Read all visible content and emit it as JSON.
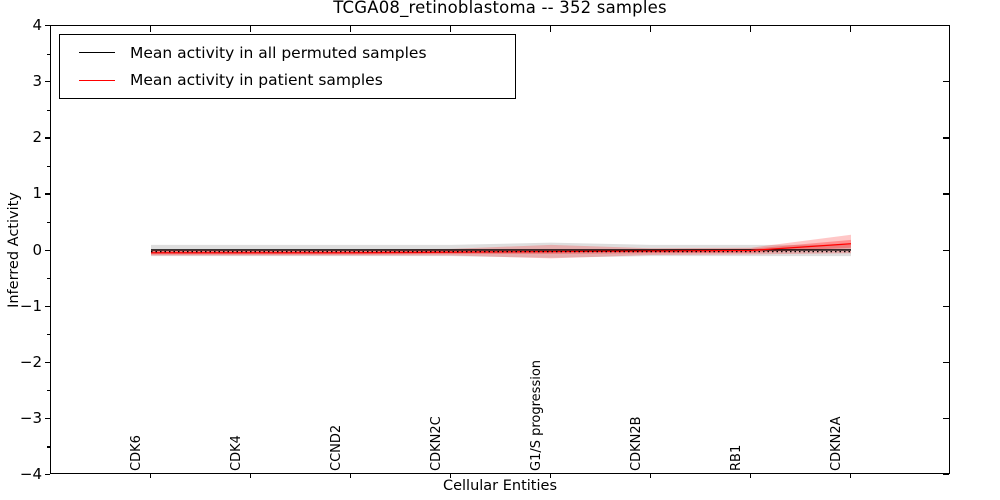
{
  "title": "TCGA08_retinoblastoma -- 352 samples",
  "axes": {
    "xlabel": "Cellular Entities",
    "ylabel": "Inferred Activity",
    "ylim": [
      -4,
      4
    ],
    "xlim": [
      0,
      9
    ],
    "ytick_major_values": [
      4,
      3,
      2,
      1,
      0,
      -1,
      -2,
      -3,
      -4
    ],
    "ytick_labels": [
      "4",
      "3",
      "2",
      "1",
      "0",
      "−1",
      "−2",
      "−3",
      "−4"
    ],
    "ytick_minor_step": 0.5
  },
  "legend": {
    "entries": [
      {
        "label": "Mean activity in all permuted samples",
        "color": "#000000"
      },
      {
        "label": "Mean activity in patient samples",
        "color": "#ff0000"
      }
    ]
  },
  "chart_data": {
    "type": "line",
    "title": "TCGA08_retinoblastoma -- 352 samples",
    "xlabel": "Cellular Entities",
    "ylabel": "Inferred Activity",
    "ylim": [
      -4,
      4
    ],
    "xlim": [
      0,
      9
    ],
    "grid": false,
    "legend_position": "upper left",
    "categories": [
      "CDK6",
      "CDK4",
      "CCND2",
      "CDKN2C",
      "G1/S progression",
      "CDKN2B",
      "RB1",
      "CDKN2A"
    ],
    "x": [
      1,
      2,
      3,
      4,
      5,
      6,
      7,
      8
    ],
    "series": [
      {
        "name": "Mean activity in all permuted samples",
        "color": "#000000",
        "style": "solid",
        "values": [
          0.01,
          0.01,
          0.01,
          0.01,
          0.01,
          0.01,
          0.01,
          0.01
        ]
      },
      {
        "name": "Mean activity in patient samples",
        "color": "#ff0000",
        "style": "solid",
        "values": [
          -0.04,
          -0.04,
          -0.04,
          -0.03,
          -0.02,
          -0.01,
          0.0,
          0.12
        ]
      },
      {
        "name": "zero-reference-dotted",
        "color": "#000000",
        "style": "dotted",
        "values": [
          -0.02,
          -0.02,
          -0.02,
          -0.02,
          -0.02,
          -0.02,
          -0.02,
          -0.02
        ]
      }
    ],
    "bands": [
      {
        "name": "permuted-std-band",
        "color": "rgba(0,0,0,0.13)",
        "lower": [
          -0.1,
          -0.1,
          -0.1,
          -0.1,
          -0.13,
          -0.1,
          -0.1,
          -0.1
        ],
        "upper": [
          0.1,
          0.1,
          0.1,
          0.1,
          0.14,
          0.1,
          0.1,
          0.1
        ]
      },
      {
        "name": "patient-std-band-outer",
        "color": "rgba(255,0,0,0.22)",
        "lower": [
          -0.09,
          -0.09,
          -0.09,
          -0.09,
          -0.14,
          -0.08,
          -0.07,
          -0.05
        ],
        "upper": [
          0.02,
          0.02,
          0.02,
          0.03,
          0.1,
          0.04,
          0.05,
          0.28
        ]
      },
      {
        "name": "patient-std-band-inner",
        "color": "rgba(255,0,0,0.28)",
        "lower": [
          -0.07,
          -0.07,
          -0.07,
          -0.06,
          -0.06,
          -0.05,
          -0.04,
          0.05
        ],
        "upper": [
          0.0,
          0.0,
          0.0,
          0.0,
          0.01,
          0.02,
          0.03,
          0.19
        ]
      }
    ]
  }
}
